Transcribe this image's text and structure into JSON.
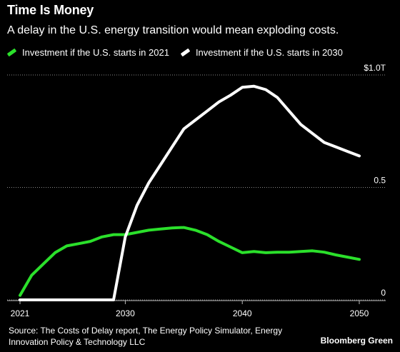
{
  "header": {
    "title": "Time Is Money",
    "subtitle": "A delay in the U.S. energy transition would mean exploding costs."
  },
  "legend": [
    {
      "label": "Investment if the U.S. starts in 2021",
      "color": "#2be02b"
    },
    {
      "label": "Investment if the U.S. starts in 2030",
      "color": "#ffffff"
    }
  ],
  "chart_data": {
    "type": "line",
    "title": "Time Is Money",
    "subtitle": "A delay in the U.S. energy transition would mean exploding costs.",
    "xlabel": "",
    "ylabel": "",
    "xlim": [
      2021,
      2050
    ],
    "ylim": [
      0,
      1.0
    ],
    "x_ticks": [
      "2021",
      "2030",
      "2040",
      "2050"
    ],
    "y_ticks": [
      {
        "value": 0,
        "label": "0"
      },
      {
        "value": 0.5,
        "label": "0.5"
      },
      {
        "value": 1.0,
        "label": "$1.0T"
      }
    ],
    "grid": "horizontal dotted",
    "legend_position": "top-left",
    "series": [
      {
        "name": "Investment if the U.S. starts in 2021",
        "color": "#2be02b",
        "x": [
          2021,
          2022,
          2023,
          2024,
          2025,
          2026,
          2027,
          2028,
          2029,
          2030,
          2031,
          2032,
          2033,
          2034,
          2035,
          2036,
          2037,
          2038,
          2039,
          2040,
          2041,
          2042,
          2043,
          2044,
          2045,
          2046,
          2047,
          2048,
          2049,
          2050
        ],
        "values": [
          0.02,
          0.11,
          0.16,
          0.21,
          0.24,
          0.25,
          0.26,
          0.28,
          0.29,
          0.29,
          0.3,
          0.31,
          0.315,
          0.32,
          0.322,
          0.31,
          0.29,
          0.26,
          0.235,
          0.21,
          0.215,
          0.21,
          0.212,
          0.212,
          0.215,
          0.218,
          0.212,
          0.2,
          0.19,
          0.18
        ]
      },
      {
        "name": "Investment if the U.S. starts in 2030",
        "color": "#ffffff",
        "x": [
          2021,
          2022,
          2023,
          2024,
          2025,
          2026,
          2027,
          2028,
          2029,
          2030,
          2031,
          2032,
          2033,
          2034,
          2035,
          2036,
          2037,
          2038,
          2039,
          2040,
          2041,
          2042,
          2043,
          2044,
          2045,
          2046,
          2047,
          2048,
          2049,
          2050
        ],
        "values": [
          0,
          0,
          0,
          0,
          0,
          0,
          0,
          0,
          0,
          0.28,
          0.42,
          0.52,
          0.6,
          0.68,
          0.76,
          0.8,
          0.84,
          0.88,
          0.91,
          0.945,
          0.95,
          0.935,
          0.9,
          0.84,
          0.78,
          0.74,
          0.7,
          0.68,
          0.66,
          0.64
        ]
      }
    ]
  },
  "footer": {
    "source": "Source: The Costs of Delay report, The Energy Policy Simulator, Energy Innovation Policy & Technology LLC",
    "brand": "Bloomberg Green"
  }
}
